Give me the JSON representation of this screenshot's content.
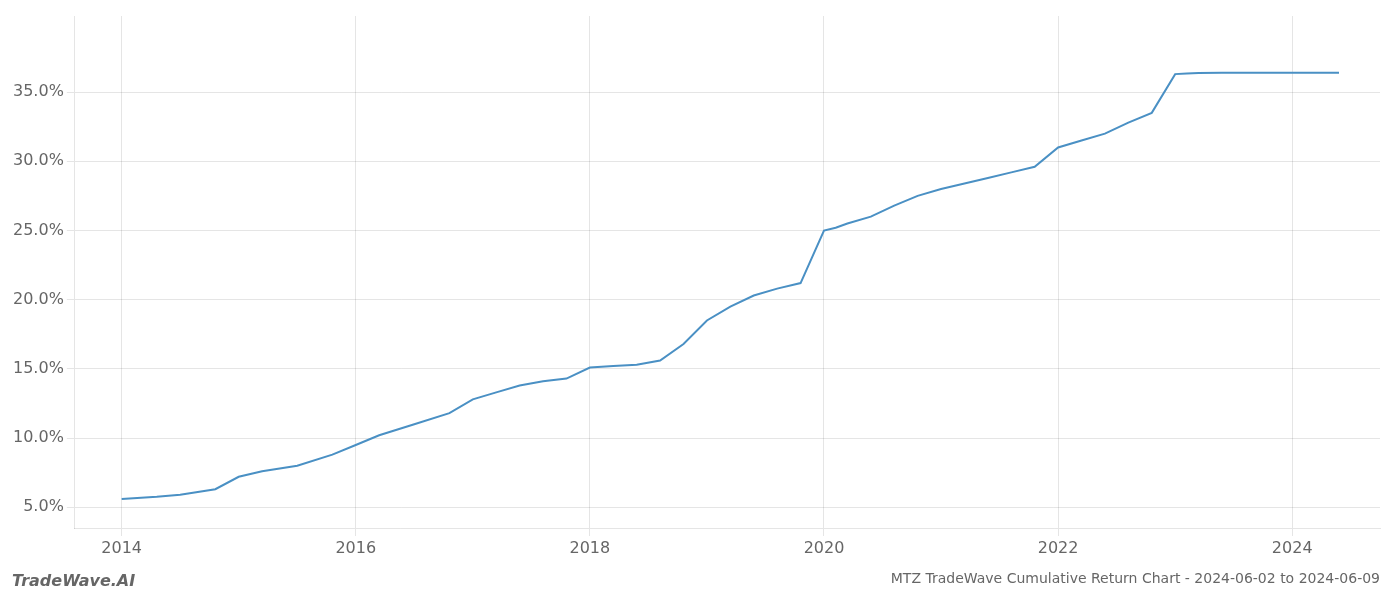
{
  "chart_data": {
    "type": "line",
    "title": "MTZ TradeWave Cumulative Return Chart - 2024-06-02 to 2024-06-09",
    "annotations": [
      "TradeWave.AI"
    ],
    "color": "#4a90c4",
    "grid": true,
    "x": [
      2014.0,
      2014.1,
      2014.3,
      2014.5,
      2014.8,
      2015.0,
      2015.2,
      2015.5,
      2015.8,
      2016.0,
      2016.2,
      2016.5,
      2016.8,
      2017.0,
      2017.2,
      2017.4,
      2017.6,
      2017.8,
      2018.0,
      2018.1,
      2018.2,
      2018.4,
      2018.6,
      2018.8,
      2019.0,
      2019.2,
      2019.4,
      2019.6,
      2019.8,
      2020.0,
      2020.1,
      2020.2,
      2020.4,
      2020.6,
      2020.8,
      2021.0,
      2021.2,
      2021.4,
      2021.6,
      2021.8,
      2022.0,
      2022.2,
      2022.4,
      2022.6,
      2022.8,
      2023.0,
      2023.1,
      2023.2,
      2023.4,
      2023.5,
      2023.6,
      2023.8,
      2024.0,
      2024.2,
      2024.4
    ],
    "values": [
      5.6,
      5.65,
      5.75,
      5.9,
      6.3,
      7.2,
      7.6,
      8.0,
      8.8,
      9.5,
      10.2,
      11.0,
      11.8,
      12.8,
      13.3,
      13.8,
      14.1,
      14.3,
      15.1,
      15.15,
      15.2,
      15.3,
      15.6,
      16.8,
      18.5,
      19.5,
      20.3,
      20.8,
      21.2,
      25.0,
      25.2,
      25.5,
      26.0,
      26.8,
      27.5,
      28.0,
      28.4,
      28.8,
      29.2,
      29.6,
      31.0,
      31.5,
      32.0,
      32.8,
      33.5,
      36.3,
      36.35,
      36.38,
      36.4,
      36.4,
      36.4,
      36.4,
      36.4,
      36.4,
      36.4
    ],
    "xlim": [
      2013.6,
      2024.75
    ],
    "xticks": [
      2014,
      2016,
      2018,
      2020,
      2022,
      2024
    ],
    "ylim": [
      3.5,
      40.5
    ],
    "yticks": [
      {
        "value": 5.0,
        "label": "5.0%"
      },
      {
        "value": 10.0,
        "label": "10.0%"
      },
      {
        "value": 15.0,
        "label": "15.0%"
      },
      {
        "value": 20.0,
        "label": "20.0%"
      },
      {
        "value": 25.0,
        "label": "25.0%"
      },
      {
        "value": 30.0,
        "label": "30.0%"
      },
      {
        "value": 35.0,
        "label": "35.0%"
      }
    ]
  }
}
